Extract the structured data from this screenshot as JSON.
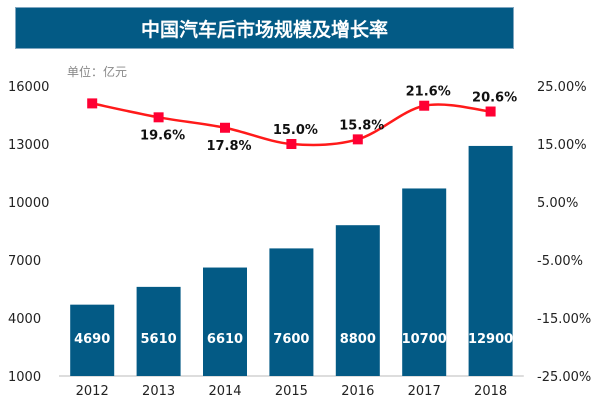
{
  "chart_data": {
    "type": "bar+line",
    "title": "中国汽车后市场规模及增长率",
    "unit_note": "单位：亿元",
    "categories": [
      "2012",
      "2013",
      "2014",
      "2015",
      "2016",
      "2017",
      "2018"
    ],
    "series": [
      {
        "type": "bar",
        "axis": "left",
        "values": [
          4690,
          5610,
          6610,
          7600,
          8800,
          10700,
          12900
        ],
        "color": "#035a85",
        "labels": [
          "4690",
          "5610",
          "6610",
          "7600",
          "8800",
          "10700",
          "12900"
        ]
      },
      {
        "type": "line",
        "axis": "right",
        "values": [
          22.0,
          19.6,
          17.8,
          15.0,
          15.8,
          21.6,
          20.6
        ],
        "color": "#ff1a1a",
        "marker_color": "#ff0033",
        "labels": [
          "",
          "19.6%",
          "17.8%",
          "15.0%",
          "15.8%",
          "21.6%",
          "20.6%"
        ]
      }
    ],
    "y_left": {
      "lim": [
        1000,
        16000
      ],
      "ticks": [
        "1000",
        "4000",
        "7000",
        "10000",
        "13000",
        "16000"
      ]
    },
    "y_right": {
      "lim": [
        -25,
        25
      ],
      "ticks": [
        "-25.00%",
        "-15.00%",
        "-5.00%",
        "5.00%",
        "15.00%",
        "25.00%"
      ]
    },
    "grid": false,
    "legend": "none"
  }
}
